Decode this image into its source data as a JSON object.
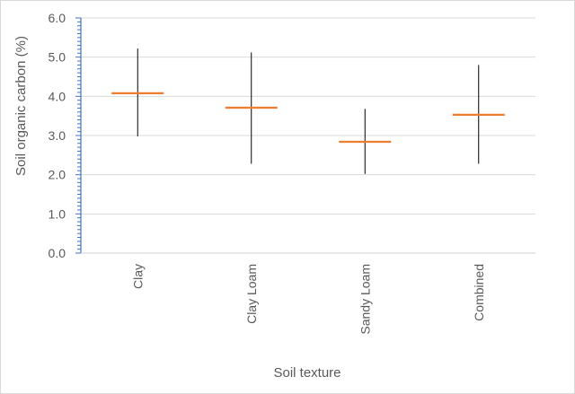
{
  "chart_data": {
    "type": "range",
    "title": "",
    "xlabel": "Soil texture",
    "ylabel": "Soil organic carbon (%)",
    "ylim": [
      0,
      6
    ],
    "y_ticks": [
      "0.0",
      "1.0",
      "2.0",
      "3.0",
      "4.0",
      "5.0",
      "6.0"
    ],
    "grid": "horizontal",
    "legend": "none",
    "categories": [
      "Clay",
      "Clay Loam",
      "Sandy Loam",
      "Combined"
    ],
    "series": [
      {
        "high": [
          5.22,
          5.12,
          3.68,
          4.8
        ],
        "low": [
          2.98,
          2.28,
          2.02,
          2.28
        ],
        "mean": [
          4.08,
          3.71,
          2.84,
          3.53
        ]
      }
    ],
    "colors": {
      "range_line": "#000000",
      "mean_marker": "#ed7d31",
      "axis": "#4472c4",
      "grid": "#d9d9d9"
    }
  }
}
